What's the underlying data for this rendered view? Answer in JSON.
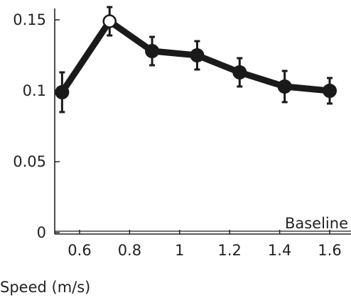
{
  "chart_data": {
    "type": "line",
    "xlabel": "Speed (m/s)",
    "ylabel": "",
    "xlim": [
      0.5,
      1.65
    ],
    "ylim": [
      0,
      0.16
    ],
    "xticks": [
      0.6,
      0.8,
      1.0,
      1.2,
      1.4,
      1.6
    ],
    "xtick_labels": [
      "0.6",
      "0.8",
      "1",
      "1.2",
      "1.4",
      "1.6"
    ],
    "yticks": [
      0,
      0.05,
      0.1,
      0.15
    ],
    "ytick_labels": [
      "0",
      "0.05",
      "0.1",
      "0.15"
    ],
    "grid": false,
    "baseline_label": "Baseline",
    "series": [
      {
        "x": [
          0.53,
          0.72,
          0.89,
          1.07,
          1.24,
          1.42,
          1.6
        ],
        "y": [
          0.099,
          0.149,
          0.128,
          0.125,
          0.113,
          0.103,
          0.1
        ],
        "err": [
          0.014,
          0.01,
          0.01,
          0.01,
          0.01,
          0.011,
          0.009
        ],
        "marker_fill": [
          "filled",
          "open",
          "filled",
          "filled",
          "filled",
          "filled",
          "filled"
        ]
      }
    ],
    "colors": {
      "line": "#1a1a1a",
      "open_marker_fill": "#ffffff"
    }
  }
}
